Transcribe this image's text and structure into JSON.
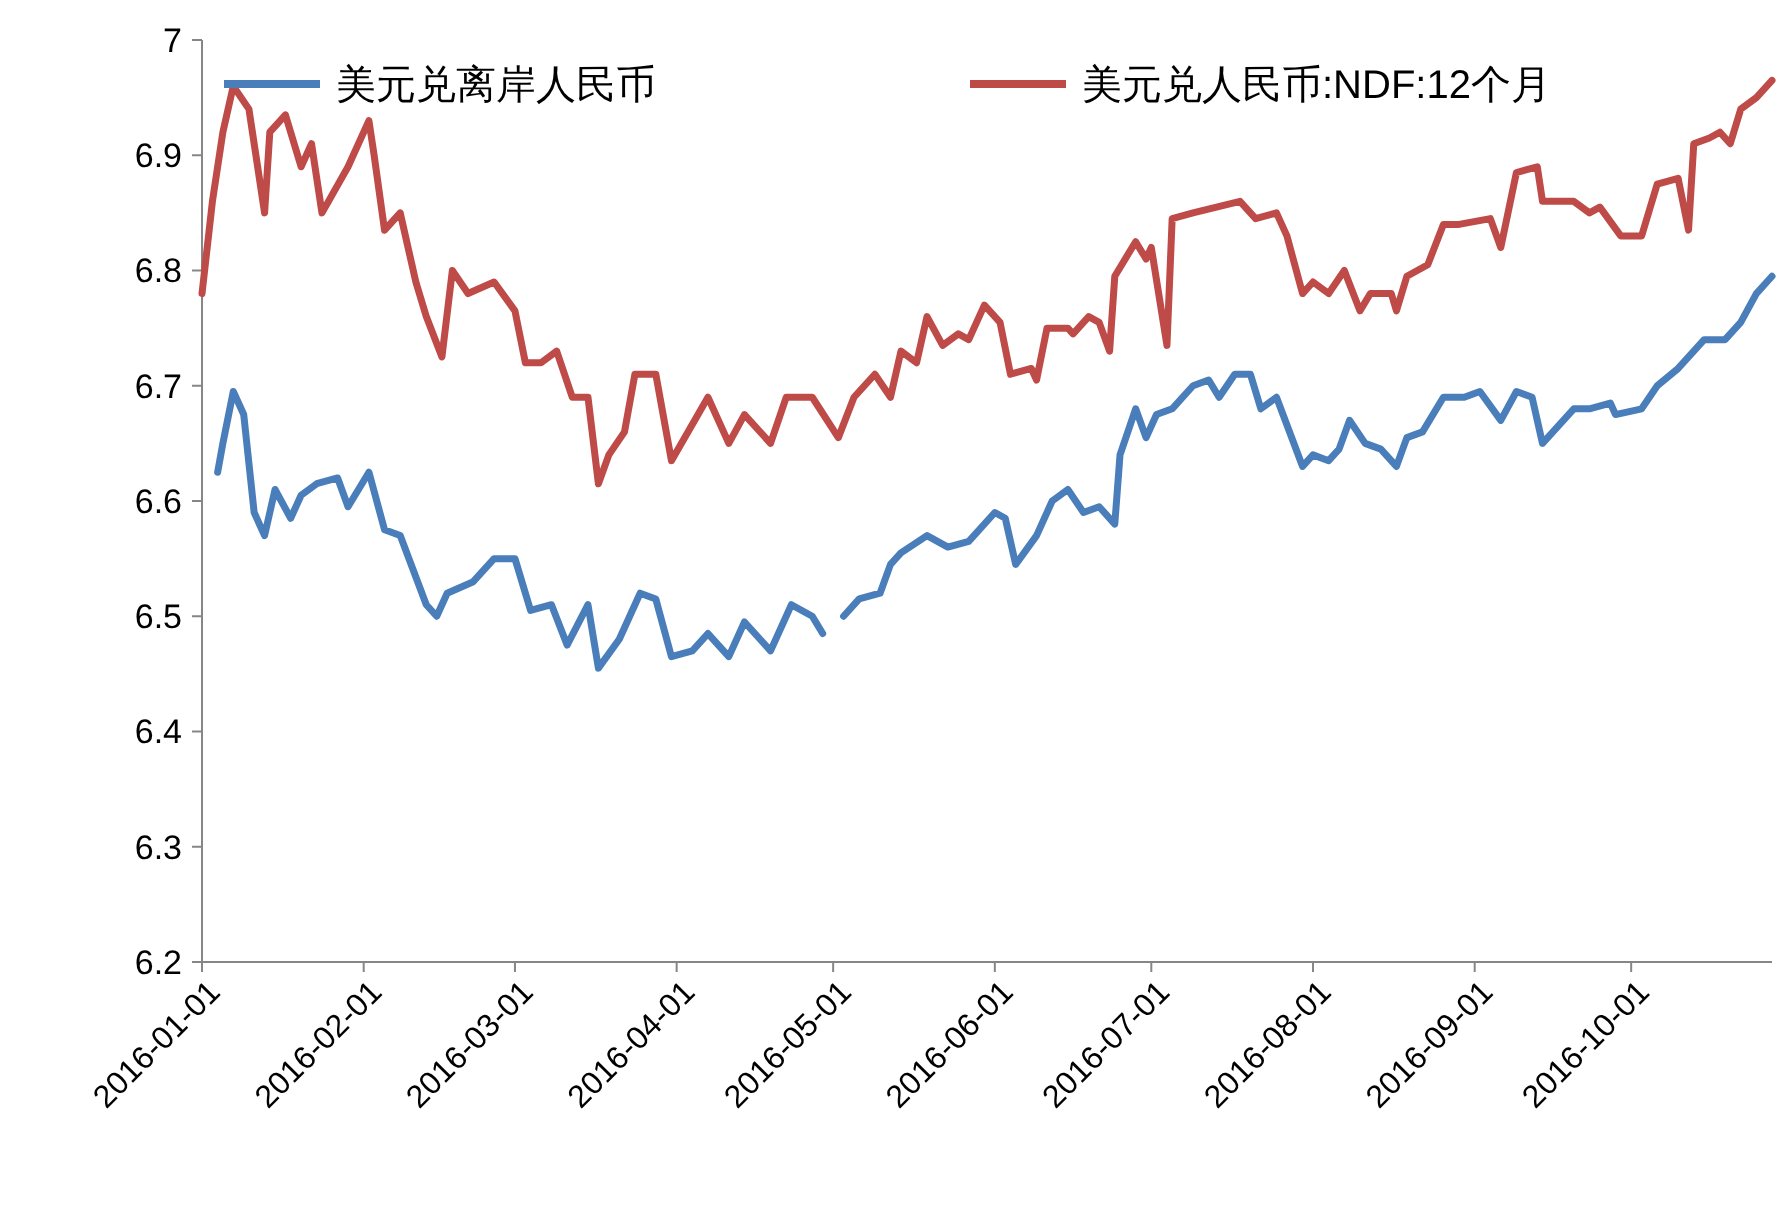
{
  "chart_data": {
    "type": "line",
    "legend": "top",
    "grid": false,
    "marker": "none",
    "line_style": "solid",
    "xlim": [
      "2016-01-01",
      "2016-10-28"
    ],
    "xticks": [
      "2016-01-01",
      "2016-02-01",
      "2016-03-01",
      "2016-04-01",
      "2016-05-01",
      "2016-06-01",
      "2016-07-01",
      "2016-08-01",
      "2016-09-01",
      "2016-10-01"
    ],
    "ylim": [
      6.2,
      7
    ],
    "yticks": [
      6.2,
      6.3,
      6.4,
      6.5,
      6.6,
      6.7,
      6.8,
      6.9,
      7
    ],
    "series": [
      {
        "name": "美元兑离岸人民币",
        "color": "#4a7ebb",
        "x": [
          "2016-01-04",
          "2016-01-05",
          "2016-01-07",
          "2016-01-09",
          "2016-01-11",
          "2016-01-13",
          "2016-01-15",
          "2016-01-18",
          "2016-01-20",
          "2016-01-23",
          "2016-01-27",
          "2016-01-29",
          "2016-02-02",
          "2016-02-05",
          "2016-02-08",
          "2016-02-13",
          "2016-02-15",
          "2016-02-17",
          "2016-02-22",
          "2016-02-26",
          "2016-03-01",
          "2016-03-04",
          "2016-03-08",
          "2016-03-11",
          "2016-03-15",
          "2016-03-17",
          "2016-03-21",
          "2016-03-25",
          "2016-03-28",
          "2016-03-31",
          "2016-04-04",
          "2016-04-07",
          "2016-04-11",
          "2016-04-14",
          "2016-04-19",
          "2016-04-23",
          "2016-04-27",
          "2016-04-29",
          "2016-05-01",
          "2016-05-03",
          "2016-05-06",
          "2016-05-10",
          "2016-05-12",
          "2016-05-14",
          "2016-05-19",
          "2016-05-23",
          "2016-05-27",
          "2016-06-01",
          "2016-06-03",
          "2016-06-05",
          "2016-06-09",
          "2016-06-12",
          "2016-06-15",
          "2016-06-18",
          "2016-06-21",
          "2016-06-24",
          "2016-06-25",
          "2016-06-28",
          "2016-06-30",
          "2016-07-02",
          "2016-07-05",
          "2016-07-09",
          "2016-07-12",
          "2016-07-14",
          "2016-07-17",
          "2016-07-20",
          "2016-07-22",
          "2016-07-25",
          "2016-07-30",
          "2016-08-01",
          "2016-08-04",
          "2016-08-06",
          "2016-08-08",
          "2016-08-11",
          "2016-08-14",
          "2016-08-17",
          "2016-08-19",
          "2016-08-22",
          "2016-08-26",
          "2016-08-30",
          "2016-09-02",
          "2016-09-06",
          "2016-09-09",
          "2016-09-12",
          "2016-09-14",
          "2016-09-17",
          "2016-09-20",
          "2016-09-23",
          "2016-09-27",
          "2016-09-28",
          "2016-10-03",
          "2016-10-06",
          "2016-10-10",
          "2016-10-12",
          "2016-10-15",
          "2016-10-19",
          "2016-10-22",
          "2016-10-25",
          "2016-10-28"
        ],
        "values": [
          6.625,
          6.65,
          6.695,
          6.675,
          6.59,
          6.57,
          6.61,
          6.585,
          6.605,
          6.615,
          6.62,
          6.595,
          6.625,
          6.575,
          6.57,
          6.51,
          6.5,
          6.52,
          6.53,
          6.55,
          6.55,
          6.505,
          6.51,
          6.475,
          6.51,
          6.455,
          6.48,
          6.52,
          6.515,
          6.465,
          6.47,
          6.485,
          6.465,
          6.495,
          6.47,
          6.51,
          6.5,
          6.485,
          null,
          6.5,
          6.515,
          6.52,
          6.545,
          6.555,
          6.57,
          6.56,
          6.565,
          6.59,
          6.585,
          6.545,
          6.57,
          6.6,
          6.61,
          6.59,
          6.595,
          6.58,
          6.64,
          6.68,
          6.655,
          6.675,
          6.68,
          6.7,
          6.705,
          6.69,
          6.71,
          6.71,
          6.68,
          6.69,
          6.63,
          6.64,
          6.635,
          6.645,
          6.67,
          6.65,
          6.645,
          6.63,
          6.655,
          6.66,
          6.69,
          6.69,
          6.695,
          6.67,
          6.695,
          6.69,
          6.65,
          6.665,
          6.68,
          6.68,
          6.685,
          6.675,
          6.68,
          6.7,
          6.715,
          6.725,
          6.74,
          6.74,
          6.755,
          6.78,
          6.795
        ]
      },
      {
        "name": "美元兑人民币:NDF:12个月",
        "color": "#be4b48",
        "x": [
          "2016-01-01",
          "2016-01-03",
          "2016-01-05",
          "2016-01-07",
          "2016-01-10",
          "2016-01-13",
          "2016-01-14",
          "2016-01-17",
          "2016-01-20",
          "2016-01-22",
          "2016-01-24",
          "2016-01-29",
          "2016-02-02",
          "2016-02-03",
          "2016-02-05",
          "2016-02-08",
          "2016-02-11",
          "2016-02-13",
          "2016-02-16",
          "2016-02-18",
          "2016-02-21",
          "2016-02-26",
          "2016-03-01",
          "2016-03-03",
          "2016-03-06",
          "2016-03-09",
          "2016-03-12",
          "2016-03-15",
          "2016-03-17",
          "2016-03-19",
          "2016-03-22",
          "2016-03-24",
          "2016-03-28",
          "2016-03-31",
          "2016-04-07",
          "2016-04-11",
          "2016-04-14",
          "2016-04-19",
          "2016-04-22",
          "2016-04-27",
          "2016-05-02",
          "2016-05-05",
          "2016-05-09",
          "2016-05-12",
          "2016-05-14",
          "2016-05-17",
          "2016-05-19",
          "2016-05-22",
          "2016-05-25",
          "2016-05-27",
          "2016-05-30",
          "2016-06-02",
          "2016-06-04",
          "2016-06-08",
          "2016-06-09",
          "2016-06-11",
          "2016-06-15",
          "2016-06-16",
          "2016-06-19",
          "2016-06-21",
          "2016-06-23",
          "2016-06-24",
          "2016-06-28",
          "2016-06-30",
          "2016-07-01",
          "2016-07-04",
          "2016-07-05",
          "2016-07-09",
          "2016-07-18",
          "2016-07-21",
          "2016-07-25",
          "2016-07-27",
          "2016-07-30",
          "2016-08-01",
          "2016-08-04",
          "2016-08-07",
          "2016-08-10",
          "2016-08-12",
          "2016-08-16",
          "2016-08-17",
          "2016-08-19",
          "2016-08-23",
          "2016-08-26",
          "2016-08-29",
          "2016-09-04",
          "2016-09-06",
          "2016-09-09",
          "2016-09-13",
          "2016-09-14",
          "2016-09-20",
          "2016-09-23",
          "2016-09-25",
          "2016-09-29",
          "2016-10-03",
          "2016-10-06",
          "2016-10-10",
          "2016-10-12",
          "2016-10-13",
          "2016-10-16",
          "2016-10-18",
          "2016-10-20",
          "2016-10-22",
          "2016-10-25",
          "2016-10-28"
        ],
        "values": [
          6.78,
          6.86,
          6.92,
          6.96,
          6.94,
          6.85,
          6.92,
          6.935,
          6.89,
          6.91,
          6.85,
          6.89,
          6.93,
          6.9,
          6.835,
          6.85,
          6.79,
          6.76,
          6.725,
          6.8,
          6.78,
          6.79,
          6.765,
          6.72,
          6.72,
          6.73,
          6.69,
          6.69,
          6.615,
          6.64,
          6.66,
          6.71,
          6.71,
          6.635,
          6.69,
          6.65,
          6.675,
          6.65,
          6.69,
          6.69,
          6.655,
          6.69,
          6.71,
          6.69,
          6.73,
          6.72,
          6.76,
          6.735,
          6.745,
          6.74,
          6.77,
          6.755,
          6.71,
          6.715,
          6.705,
          6.75,
          6.75,
          6.745,
          6.76,
          6.755,
          6.73,
          6.795,
          6.825,
          6.81,
          6.82,
          6.735,
          6.845,
          6.85,
          6.86,
          6.845,
          6.85,
          6.83,
          6.78,
          6.79,
          6.78,
          6.8,
          6.765,
          6.78,
          6.78,
          6.765,
          6.795,
          6.805,
          6.84,
          6.84,
          6.845,
          6.82,
          6.885,
          6.89,
          6.86,
          6.86,
          6.85,
          6.855,
          6.83,
          6.83,
          6.875,
          6.88,
          6.835,
          6.91,
          6.915,
          6.92,
          6.91,
          6.94,
          6.95,
          6.965
        ]
      }
    ]
  }
}
